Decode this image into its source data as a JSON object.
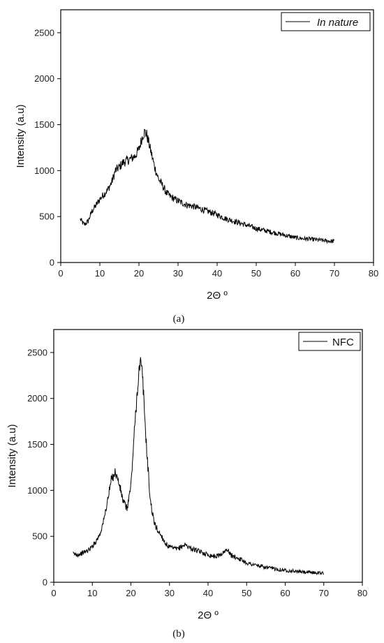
{
  "chart_data": [
    {
      "id": "a",
      "type": "line",
      "title": "",
      "xlabel": "2Θ º",
      "ylabel": "Intensity (a.u)",
      "xlim": [
        0,
        80
      ],
      "ylim": [
        0,
        2750
      ],
      "xticks": [
        0,
        10,
        20,
        30,
        40,
        50,
        60,
        70,
        80
      ],
      "yticks": [
        0,
        500,
        1000,
        1500,
        2000,
        2500
      ],
      "legend_position": "top-right",
      "legend_italic": true,
      "grid": false,
      "line_color": "#000000",
      "caption": "(a)",
      "series": [
        {
          "name": "In nature",
          "x": [
            5,
            6,
            7,
            8,
            9,
            10,
            11,
            12,
            13,
            14,
            15,
            16,
            17,
            18,
            19,
            20,
            21,
            21.5,
            22,
            23,
            24,
            25,
            26,
            27,
            28,
            30,
            32,
            34,
            36,
            38,
            40,
            42,
            45,
            48,
            50,
            52,
            55,
            58,
            60,
            62,
            65,
            68,
            70
          ],
          "values": [
            470,
            410,
            450,
            560,
            620,
            690,
            740,
            790,
            870,
            1000,
            1040,
            1090,
            1110,
            1130,
            1160,
            1230,
            1390,
            1420,
            1390,
            1220,
            1040,
            910,
            840,
            760,
            720,
            670,
            630,
            610,
            580,
            550,
            520,
            480,
            440,
            400,
            370,
            350,
            320,
            290,
            270,
            260,
            250,
            235,
            230
          ]
        }
      ]
    },
    {
      "id": "b",
      "type": "line",
      "title": "",
      "xlabel": "2Θ º",
      "ylabel": "Intensity (a.u)",
      "xlim": [
        0,
        80
      ],
      "ylim": [
        0,
        2750
      ],
      "xticks": [
        0,
        10,
        20,
        30,
        40,
        50,
        60,
        70,
        80
      ],
      "yticks": [
        0,
        500,
        1000,
        1500,
        2000,
        2500
      ],
      "legend_position": "top-right",
      "legend_italic": false,
      "grid": false,
      "line_color": "#000000",
      "caption": "(b)",
      "series": [
        {
          "name": "NFC",
          "x": [
            5,
            6,
            7,
            8,
            9,
            10,
            11,
            12,
            13,
            14,
            15,
            16,
            17,
            18,
            19,
            20,
            21,
            22,
            22.5,
            23,
            24,
            25,
            26,
            27,
            28,
            29,
            30,
            32,
            34,
            36,
            38,
            40,
            42,
            44,
            45,
            46,
            48,
            50,
            55,
            60,
            65,
            70
          ],
          "values": [
            310,
            300,
            310,
            330,
            350,
            390,
            450,
            530,
            680,
            900,
            1130,
            1200,
            1060,
            880,
            800,
            1050,
            1700,
            2280,
            2380,
            2250,
            1500,
            900,
            650,
            560,
            500,
            420,
            380,
            360,
            410,
            360,
            330,
            300,
            280,
            320,
            360,
            290,
            260,
            210,
            160,
            130,
            110,
            100
          ]
        }
      ]
    }
  ]
}
